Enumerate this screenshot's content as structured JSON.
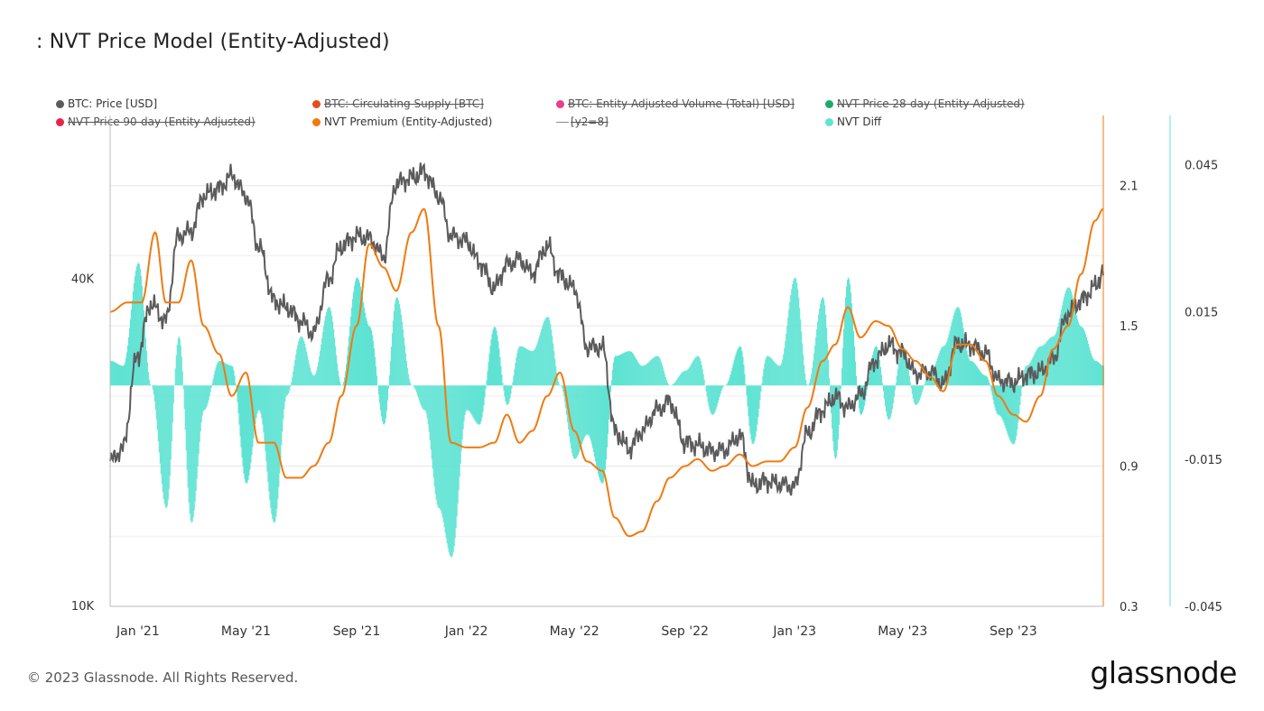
{
  "title": ": NVT Price Model (Entity-Adjusted)",
  "footer": "© 2023 Glassnode. All Rights Reserved.",
  "brand": "glassnode",
  "colors": {
    "price": "#5b5b5b",
    "premium": "#f07a10",
    "diff": "#5fe3d3",
    "supply": "#e0501e",
    "volume": "#e83e8c",
    "nvt28": "#1faa6a",
    "nvt90": "#e8234a",
    "y2": "#8a8a8a",
    "grid": "#e6e6e6",
    "axis": "#999999"
  },
  "legend": [
    {
      "label": "BTC: Price [USD]",
      "color": "#5b5b5b",
      "active": true,
      "marker": "dot"
    },
    {
      "label": "BTC: Circulating Supply [BTC]",
      "color": "#e0501e",
      "active": false,
      "marker": "dot"
    },
    {
      "label": "BTC: Entity-Adjusted Volume (Total) [USD]",
      "color": "#e83e8c",
      "active": false,
      "marker": "dot"
    },
    {
      "label": "NVT Price 28-day (Entity-Adjusted)",
      "color": "#1faa6a",
      "active": false,
      "marker": "dot"
    },
    {
      "label": "NVT Price 90-day (Entity-Adjusted)",
      "color": "#e8234a",
      "active": false,
      "marker": "dot"
    },
    {
      "label": "NVT Premium (Entity-Adjusted)",
      "color": "#f07a10",
      "active": true,
      "marker": "dot"
    },
    {
      "label": "[y2=8]",
      "color": "#8a8a8a",
      "active": false,
      "marker": "dash"
    },
    {
      "label": "NVT Diff",
      "color": "#5fe3d3",
      "active": true,
      "marker": "dot"
    }
  ],
  "chart_data": {
    "type": "line",
    "title": ": NVT Price Model (Entity-Adjusted)",
    "x_tick_labels": [
      "Jan '21",
      "May '21",
      "Sep '21",
      "Jan '22",
      "May '22",
      "Sep '22",
      "Jan '23",
      "May '23",
      "Sep '23"
    ],
    "x_tick_dates": [
      "2021-01-01",
      "2021-05-01",
      "2021-09-01",
      "2022-01-01",
      "2022-05-01",
      "2022-09-01",
      "2023-01-01",
      "2023-05-01",
      "2023-09-01"
    ],
    "x_range": [
      "2020-12-01",
      "2023-12-10"
    ],
    "y_left": {
      "label": "BTC: Price [USD]",
      "scale": "log",
      "range": [
        10000,
        80000
      ],
      "tick_labels": [
        "10K",
        "40K"
      ],
      "tick_values": [
        10000,
        40000
      ]
    },
    "y_right_1": {
      "label": "NVT Premium",
      "range": [
        0.3,
        2.4
      ],
      "tick_labels": [
        "0.3",
        "0.9",
        "1.5",
        "2.1"
      ],
      "tick_values": [
        0.3,
        0.9,
        1.5,
        2.1
      ]
    },
    "y_right_2": {
      "label": "NVT Diff",
      "range": [
        -0.045,
        0.055
      ],
      "tick_labels": [
        "-0.045",
        "-0.015",
        "0.015",
        "0.045"
      ],
      "tick_values": [
        -0.045,
        -0.015,
        0.015,
        0.045
      ]
    },
    "series": [
      {
        "name": "BTC: Price [USD]",
        "axis": "y_left",
        "x": [
          "2020-12-01",
          "2020-12-15",
          "2021-01-01",
          "2021-01-15",
          "2021-02-01",
          "2021-02-15",
          "2021-03-01",
          "2021-03-15",
          "2021-04-01",
          "2021-04-15",
          "2021-05-01",
          "2021-05-15",
          "2021-06-01",
          "2021-06-15",
          "2021-07-01",
          "2021-07-15",
          "2021-08-01",
          "2021-08-15",
          "2021-09-01",
          "2021-09-15",
          "2021-10-01",
          "2021-10-15",
          "2021-11-01",
          "2021-11-15",
          "2021-12-01",
          "2021-12-15",
          "2022-01-01",
          "2022-01-15",
          "2022-02-01",
          "2022-02-15",
          "2022-03-01",
          "2022-03-15",
          "2022-04-01",
          "2022-04-15",
          "2022-05-01",
          "2022-05-15",
          "2022-06-01",
          "2022-06-15",
          "2022-07-01",
          "2022-07-15",
          "2022-08-01",
          "2022-08-15",
          "2022-09-01",
          "2022-09-15",
          "2022-10-01",
          "2022-10-15",
          "2022-11-01",
          "2022-11-15",
          "2022-12-01",
          "2022-12-15",
          "2023-01-01",
          "2023-01-15",
          "2023-02-01",
          "2023-02-15",
          "2023-03-01",
          "2023-03-15",
          "2023-04-01",
          "2023-04-15",
          "2023-05-01",
          "2023-05-15",
          "2023-06-01",
          "2023-06-15",
          "2023-07-01",
          "2023-07-15",
          "2023-08-01",
          "2023-08-15",
          "2023-09-01",
          "2023-09-15",
          "2023-10-01",
          "2023-10-15",
          "2023-11-01",
          "2023-11-15",
          "2023-12-01",
          "2023-12-10"
        ],
        "values": [
          18500,
          19500,
          29000,
          36000,
          33500,
          48000,
          49000,
          57000,
          58700,
          62000,
          57000,
          46000,
          36500,
          35500,
          33500,
          31800,
          40000,
          46000,
          48000,
          47500,
          44000,
          60000,
          61500,
          63000,
          57000,
          48000,
          47000,
          43000,
          38500,
          42500,
          43500,
          41000,
          46000,
          40500,
          38500,
          30000,
          30000,
          21000,
          19500,
          21000,
          23000,
          23800,
          20000,
          19800,
          19300,
          19400,
          20600,
          16700,
          17000,
          16800,
          16600,
          20800,
          23000,
          24300,
          23200,
          24500,
          28400,
          30300,
          29200,
          26800,
          27000,
          25600,
          30500,
          30200,
          29200,
          26100,
          25800,
          26600,
          27000,
          28500,
          34600,
          36500,
          38700,
          41500
        ]
      },
      {
        "name": "NVT Premium (Entity-Adjusted)",
        "axis": "y_right_1",
        "x": [
          "2020-12-01",
          "2020-12-20",
          "2021-01-05",
          "2021-01-20",
          "2021-02-01",
          "2021-02-15",
          "2021-03-01",
          "2021-03-15",
          "2021-04-01",
          "2021-04-15",
          "2021-05-01",
          "2021-05-15",
          "2021-06-01",
          "2021-06-15",
          "2021-07-01",
          "2021-07-15",
          "2021-08-01",
          "2021-08-15",
          "2021-09-01",
          "2021-09-15",
          "2021-10-01",
          "2021-10-15",
          "2021-11-01",
          "2021-11-15",
          "2021-12-01",
          "2021-12-15",
          "2022-01-01",
          "2022-01-15",
          "2022-02-01",
          "2022-02-15",
          "2022-03-01",
          "2022-03-15",
          "2022-04-01",
          "2022-04-15",
          "2022-05-01",
          "2022-05-15",
          "2022-06-01",
          "2022-06-15",
          "2022-07-01",
          "2022-07-15",
          "2022-08-01",
          "2022-08-15",
          "2022-09-01",
          "2022-09-15",
          "2022-10-01",
          "2022-10-15",
          "2022-11-01",
          "2022-11-15",
          "2022-12-01",
          "2022-12-15",
          "2023-01-01",
          "2023-01-15",
          "2023-02-01",
          "2023-02-15",
          "2023-03-01",
          "2023-03-15",
          "2023-04-01",
          "2023-04-15",
          "2023-05-01",
          "2023-05-15",
          "2023-06-01",
          "2023-06-15",
          "2023-07-01",
          "2023-07-15",
          "2023-08-01",
          "2023-08-15",
          "2023-09-01",
          "2023-09-15",
          "2023-10-01",
          "2023-10-15",
          "2023-11-01",
          "2023-11-15",
          "2023-12-01",
          "2023-12-10"
        ],
        "values": [
          1.56,
          1.6,
          1.6,
          1.9,
          1.6,
          1.6,
          1.78,
          1.5,
          1.38,
          1.2,
          1.3,
          1.0,
          1.0,
          0.85,
          0.85,
          0.9,
          1.0,
          1.2,
          1.5,
          1.85,
          1.75,
          1.65,
          1.9,
          2.0,
          1.5,
          1.0,
          0.98,
          0.98,
          1.0,
          1.12,
          1.0,
          1.05,
          1.2,
          1.3,
          1.05,
          0.92,
          0.88,
          0.68,
          0.6,
          0.62,
          0.75,
          0.85,
          0.9,
          0.93,
          0.88,
          0.9,
          0.95,
          0.9,
          0.92,
          0.92,
          0.98,
          1.15,
          1.35,
          1.42,
          1.58,
          1.45,
          1.52,
          1.5,
          1.4,
          1.35,
          1.28,
          1.22,
          1.42,
          1.42,
          1.35,
          1.2,
          1.12,
          1.09,
          1.2,
          1.4,
          1.5,
          1.72,
          1.95,
          2.0
        ]
      },
      {
        "name": "NVT Diff",
        "type": "bar",
        "axis": "y_right_2",
        "x": [
          "2020-12-01",
          "2020-12-15",
          "2021-01-01",
          "2021-01-15",
          "2021-02-01",
          "2021-02-15",
          "2021-03-01",
          "2021-03-15",
          "2021-04-01",
          "2021-04-15",
          "2021-05-01",
          "2021-05-15",
          "2021-06-01",
          "2021-06-15",
          "2021-07-01",
          "2021-07-15",
          "2021-08-01",
          "2021-08-15",
          "2021-09-01",
          "2021-09-15",
          "2021-10-01",
          "2021-10-15",
          "2021-11-01",
          "2021-11-15",
          "2021-12-01",
          "2021-12-15",
          "2022-01-01",
          "2022-01-15",
          "2022-02-01",
          "2022-02-15",
          "2022-03-01",
          "2022-03-15",
          "2022-04-01",
          "2022-04-15",
          "2022-05-01",
          "2022-05-15",
          "2022-06-01",
          "2022-06-15",
          "2022-07-01",
          "2022-07-15",
          "2022-08-01",
          "2022-08-15",
          "2022-09-01",
          "2022-09-15",
          "2022-10-01",
          "2022-10-15",
          "2022-11-01",
          "2022-11-15",
          "2022-12-01",
          "2022-12-15",
          "2023-01-01",
          "2023-01-15",
          "2023-02-01",
          "2023-02-15",
          "2023-03-01",
          "2023-03-15",
          "2023-04-01",
          "2023-04-15",
          "2023-05-01",
          "2023-05-15",
          "2023-06-01",
          "2023-06-15",
          "2023-07-01",
          "2023-07-15",
          "2023-08-01",
          "2023-08-15",
          "2023-09-01",
          "2023-09-15",
          "2023-10-01",
          "2023-10-15",
          "2023-11-01",
          "2023-11-15",
          "2023-12-01",
          "2023-12-10"
        ],
        "values": [
          0.005,
          0.004,
          0.025,
          0.0,
          -0.025,
          0.01,
          -0.028,
          -0.005,
          0.005,
          0.004,
          -0.02,
          -0.005,
          -0.028,
          -0.002,
          0.01,
          0.002,
          0.016,
          0.0,
          0.022,
          0.012,
          -0.008,
          0.018,
          0.0,
          -0.005,
          -0.025,
          -0.035,
          -0.005,
          -0.008,
          0.012,
          -0.004,
          0.008,
          0.007,
          0.014,
          0.0,
          -0.015,
          -0.01,
          -0.02,
          0.006,
          0.007,
          0.004,
          0.006,
          0.0,
          0.003,
          0.006,
          -0.006,
          0.0,
          0.008,
          -0.012,
          0.006,
          0.004,
          0.022,
          0.0,
          0.018,
          -0.015,
          0.022,
          -0.006,
          0.008,
          -0.007,
          0.008,
          -0.004,
          0.003,
          0.008,
          0.016,
          0.005,
          0.002,
          -0.006,
          -0.012,
          0.004,
          0.008,
          0.01,
          0.02,
          0.012,
          0.005,
          0.004
        ]
      }
    ]
  }
}
